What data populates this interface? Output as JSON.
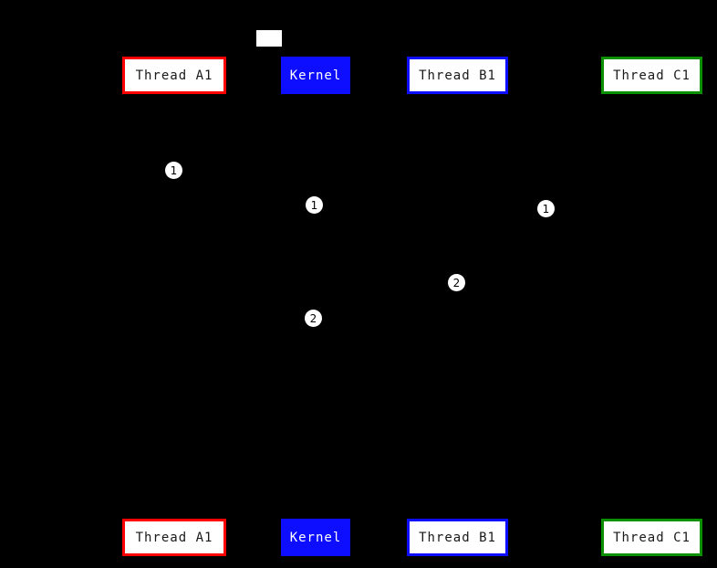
{
  "diagram": {
    "type": "sequence-diagram",
    "background_color": "#000000",
    "actors": [
      {
        "label": "Thread A1",
        "border_color": "#ff0000",
        "fill_color": "#ffffff",
        "text_color": "#1a1a1a"
      },
      {
        "label": "Kernel",
        "border_color": "#0d0dff",
        "fill_color": "#0d0dff",
        "text_color": "#ffffff"
      },
      {
        "label": "Thread B1",
        "border_color": "#0d0dff",
        "fill_color": "#ffffff",
        "text_color": "#1a1a1a"
      },
      {
        "label": "Thread C1",
        "border_color": "#0a9000",
        "fill_color": "#ffffff",
        "text_color": "#1a1a1a"
      }
    ],
    "markers": [
      {
        "label": "1"
      },
      {
        "label": "1"
      },
      {
        "label": "1"
      },
      {
        "label": "2"
      },
      {
        "label": "2"
      }
    ],
    "legend_box": {
      "fill_color": "#ffffff"
    }
  }
}
